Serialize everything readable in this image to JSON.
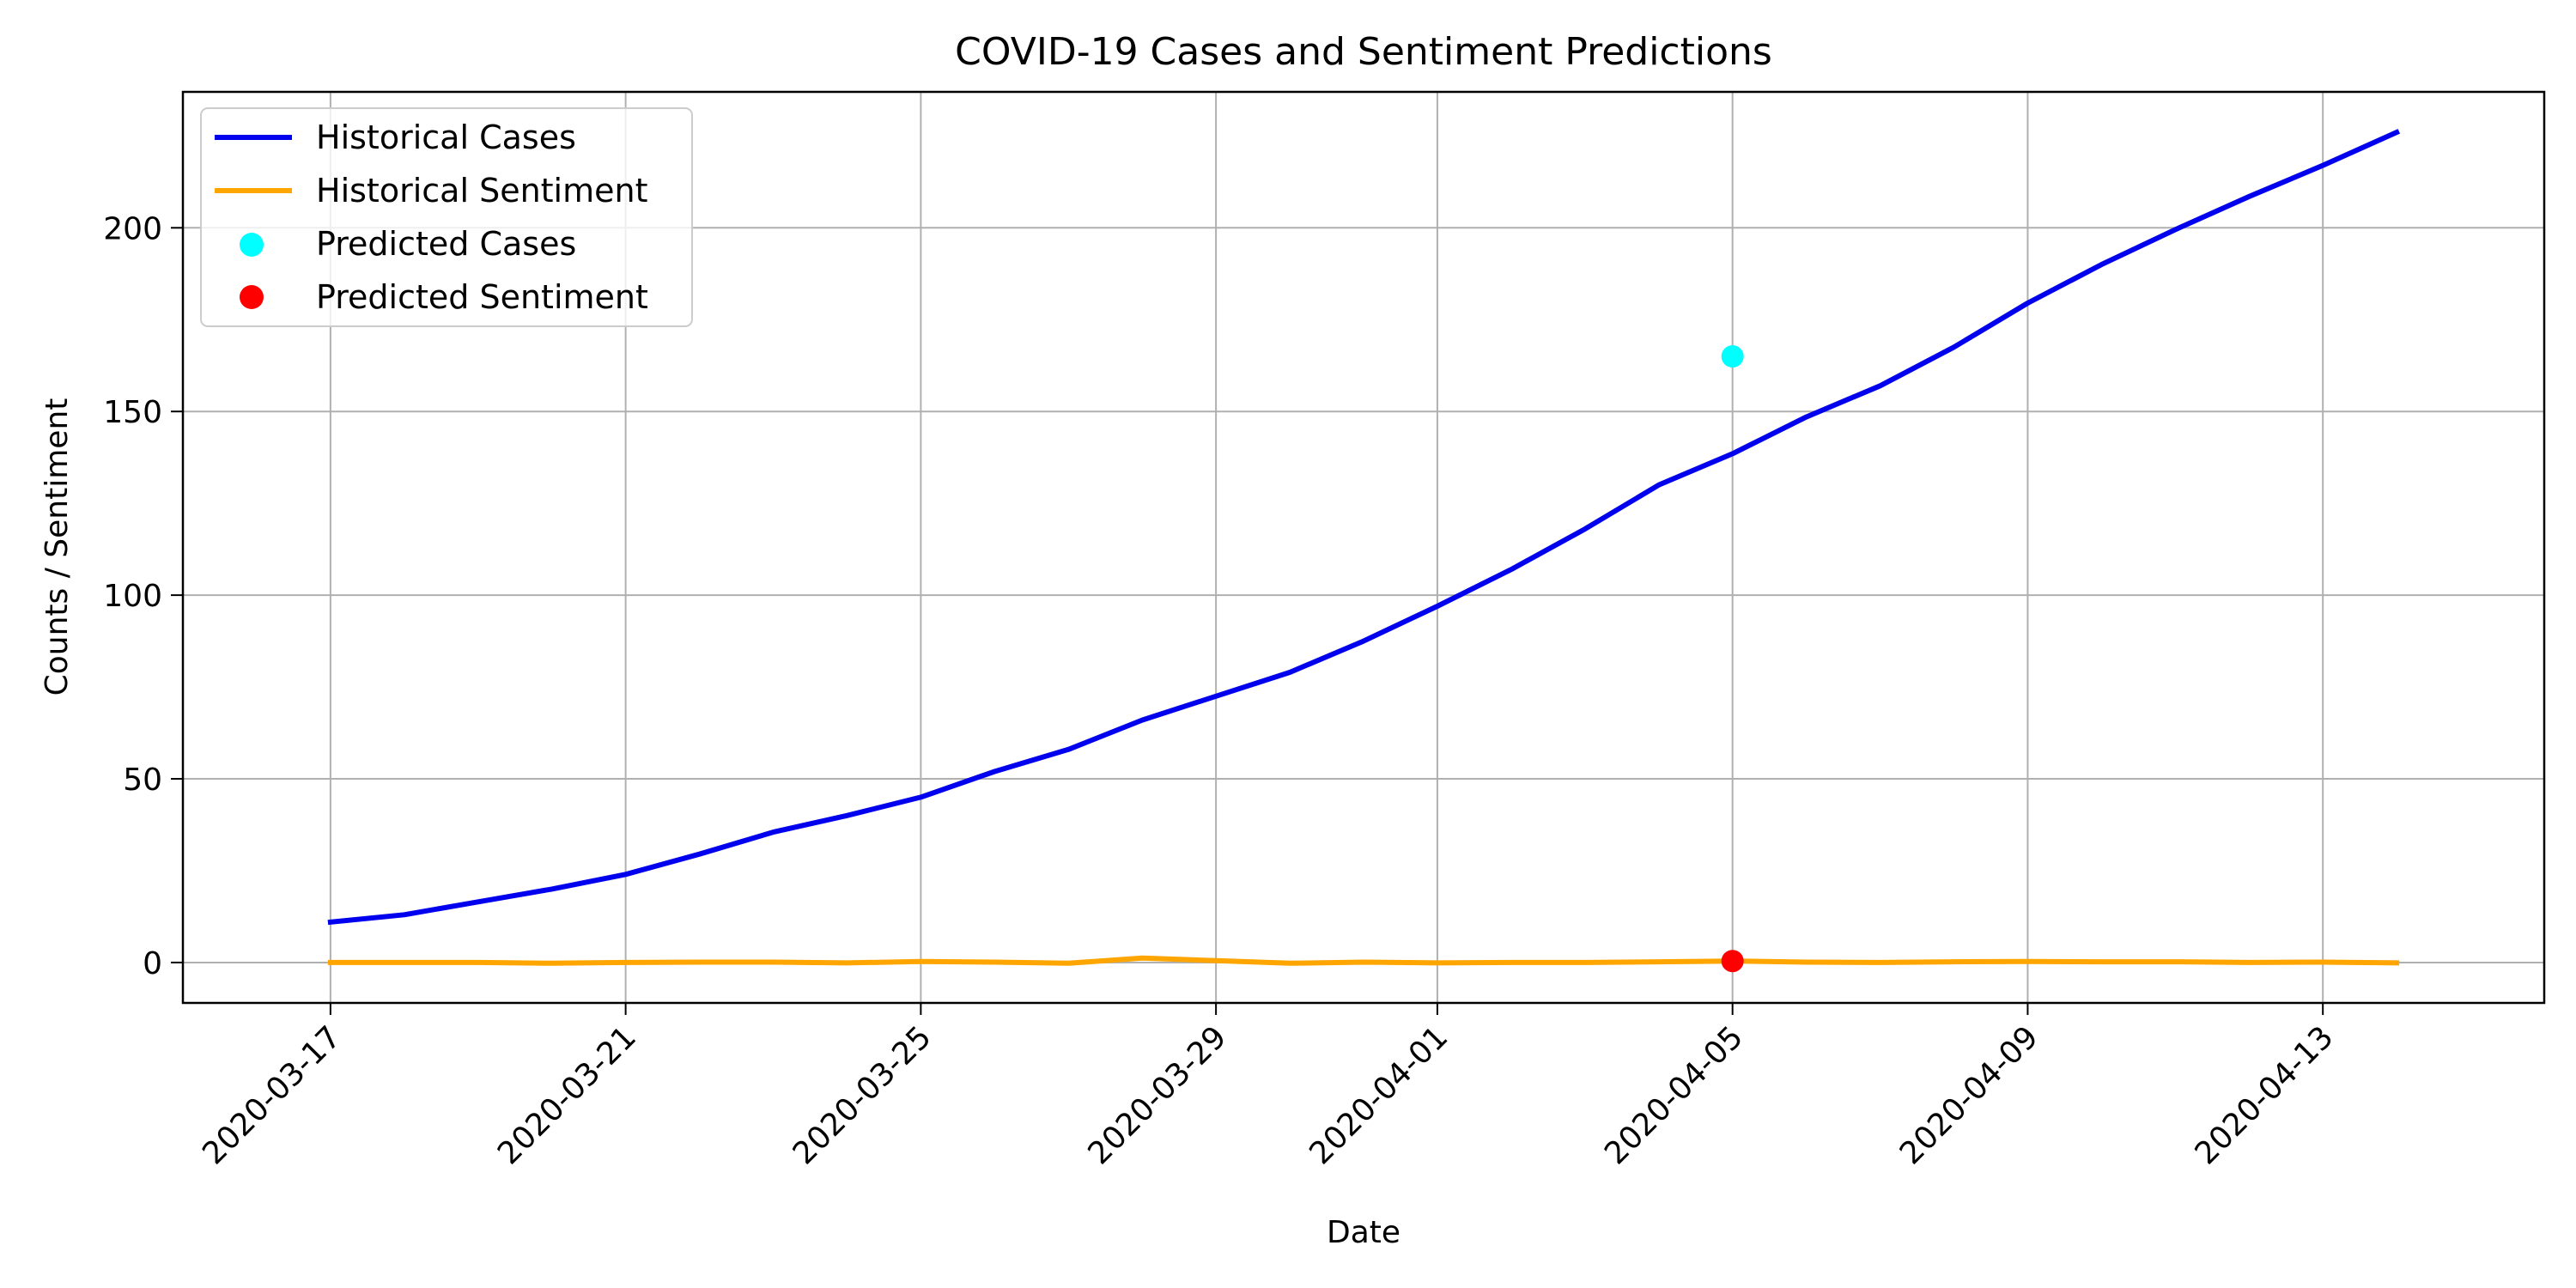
{
  "chart_data": {
    "type": "line",
    "title": "COVID-19 Cases and Sentiment Predictions",
    "xlabel": "Date",
    "ylabel": "Counts / Sentiment",
    "x_type": "date",
    "xlim": [
      "2020-03-15",
      "2020-04-16"
    ],
    "ylim": [
      -11,
      237
    ],
    "x_ticks": [
      "2020-03-17",
      "2020-03-21",
      "2020-03-25",
      "2020-03-29",
      "2020-04-01",
      "2020-04-05",
      "2020-04-09",
      "2020-04-13"
    ],
    "y_ticks": [
      0,
      50,
      100,
      150,
      200
    ],
    "grid": true,
    "legend_position": "top-left",
    "series": [
      {
        "name": "Historical Cases",
        "kind": "line",
        "color": "#0000ee",
        "x": [
          "2020-03-17",
          "2020-03-18",
          "2020-03-19",
          "2020-03-20",
          "2020-03-21",
          "2020-03-22",
          "2020-03-23",
          "2020-03-24",
          "2020-03-25",
          "2020-03-26",
          "2020-03-27",
          "2020-03-28",
          "2020-03-29",
          "2020-03-30",
          "2020-03-31",
          "2020-04-01",
          "2020-04-02",
          "2020-04-03",
          "2020-04-04",
          "2020-04-05",
          "2020-04-06",
          "2020-04-07",
          "2020-04-08",
          "2020-04-09",
          "2020-04-10",
          "2020-04-11",
          "2020-04-12",
          "2020-04-13",
          "2020-04-14"
        ],
        "y": [
          11,
          13,
          16.5,
          20,
          24,
          29.5,
          35.5,
          40,
          45,
          52,
          58,
          66,
          72.5,
          79,
          87.5,
          97,
          107,
          118,
          130,
          138.5,
          148.5,
          157,
          167.5,
          179.5,
          190,
          199.5,
          208.5,
          217,
          226
        ]
      },
      {
        "name": "Historical Sentiment",
        "kind": "line",
        "color": "#ffa500",
        "x": [
          "2020-03-17",
          "2020-03-18",
          "2020-03-19",
          "2020-03-20",
          "2020-03-21",
          "2020-03-22",
          "2020-03-23",
          "2020-03-24",
          "2020-03-25",
          "2020-03-26",
          "2020-03-27",
          "2020-03-28",
          "2020-03-29",
          "2020-03-30",
          "2020-03-31",
          "2020-04-01",
          "2020-04-02",
          "2020-04-03",
          "2020-04-04",
          "2020-04-05",
          "2020-04-06",
          "2020-04-07",
          "2020-04-08",
          "2020-04-09",
          "2020-04-10",
          "2020-04-11",
          "2020-04-12",
          "2020-04-13",
          "2020-04-14"
        ],
        "y": [
          0,
          0,
          0,
          -0.2,
          0,
          0.1,
          0.1,
          -0.1,
          0.3,
          0.1,
          -0.2,
          1.2,
          0.5,
          -0.2,
          0.1,
          -0.1,
          0,
          0,
          0.2,
          0.4,
          0.1,
          0,
          0.2,
          0.3,
          0.2,
          0.2,
          0,
          0.1,
          -0.1
        ]
      },
      {
        "name": "Predicted Cases",
        "kind": "point",
        "color": "#00ffff",
        "x": [
          "2020-04-05"
        ],
        "y": [
          165
        ]
      },
      {
        "name": "Predicted Sentiment",
        "kind": "point",
        "color": "#ff0000",
        "x": [
          "2020-04-05"
        ],
        "y": [
          0.4
        ]
      }
    ]
  }
}
